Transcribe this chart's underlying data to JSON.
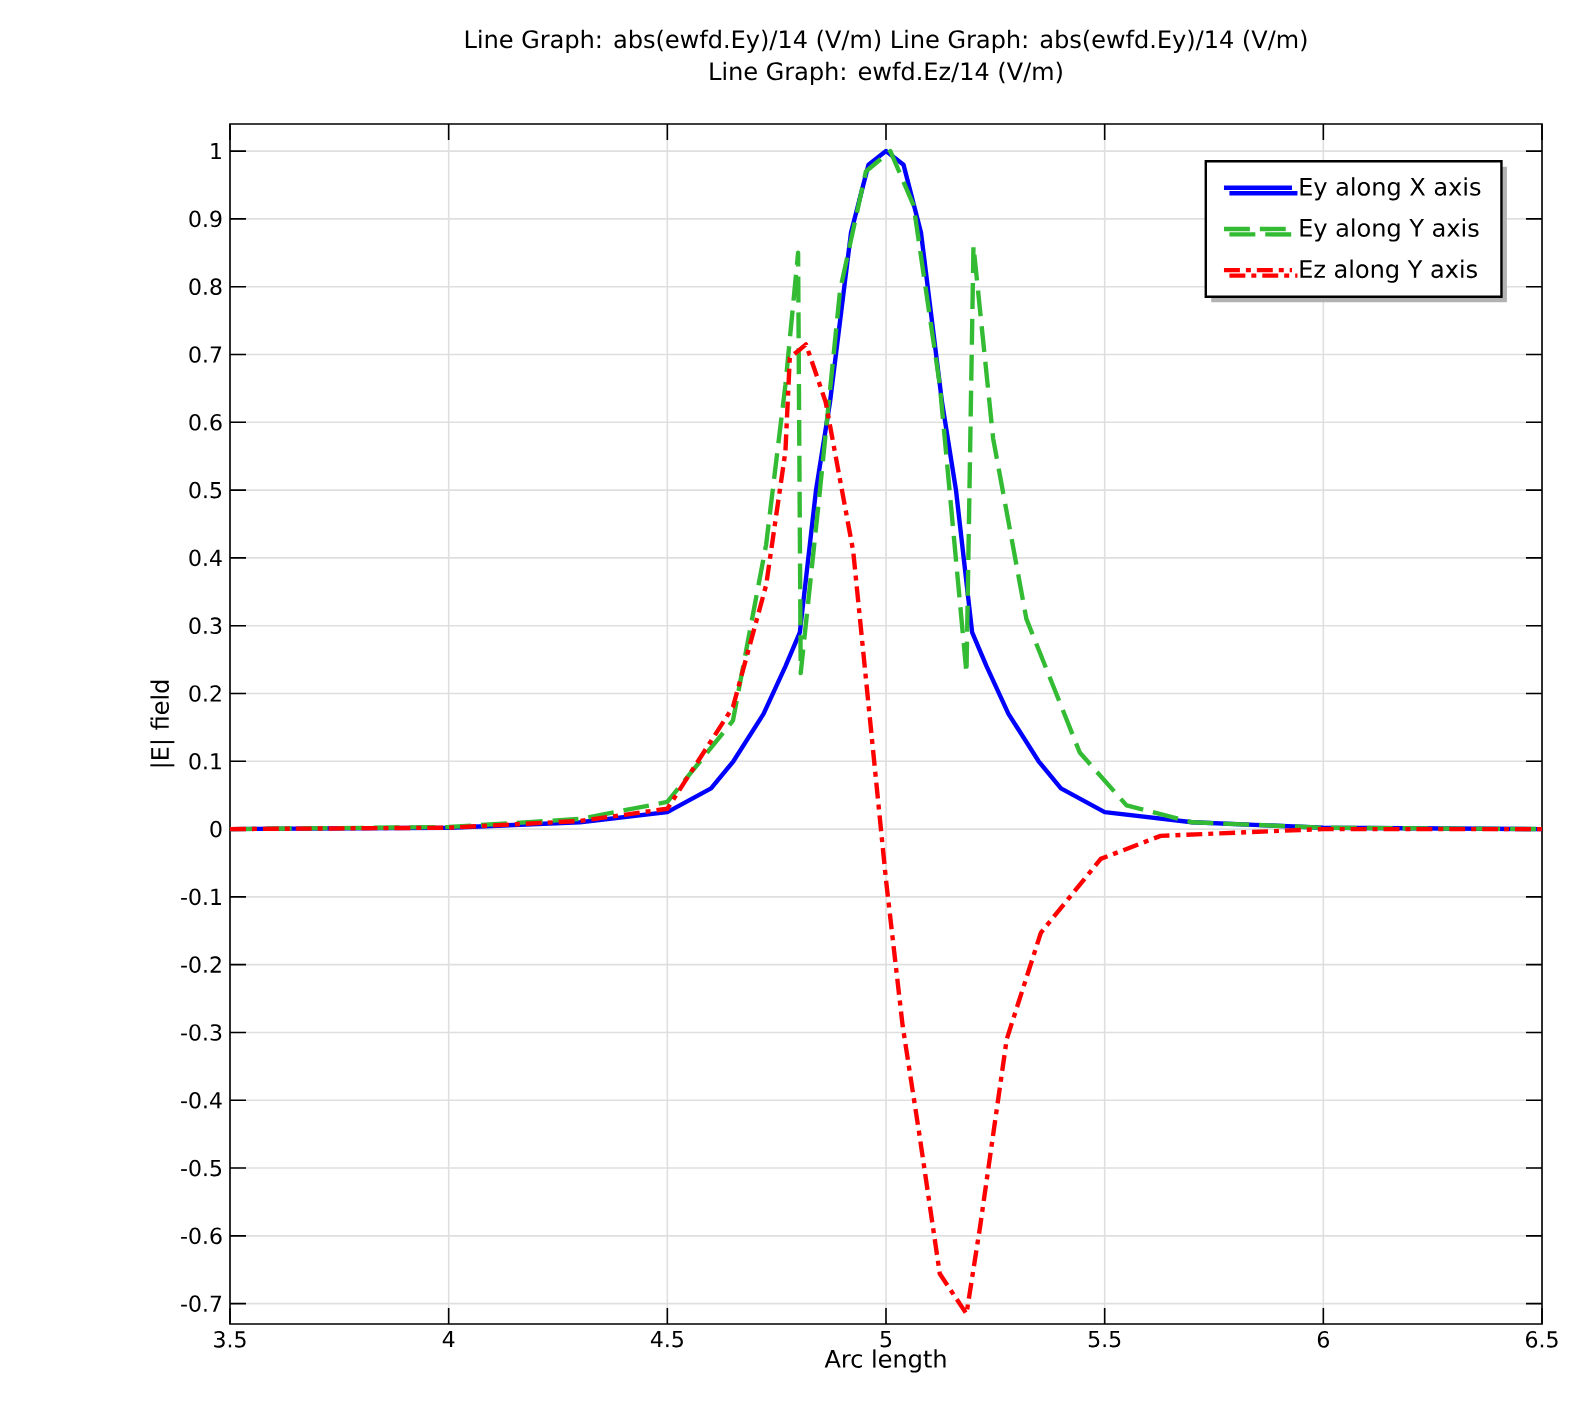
{
  "chart_data": {
    "type": "line",
    "title": "Line Graph: abs(ewfd.Ey)/14 (V/m)   Line Graph: abs(ewfd.Ey)/14 (V/m)",
    "subtitle": "Line Graph: ewfd.Ez/14 (V/m)",
    "xlabel": "Arc length",
    "ylabel": "|E| field",
    "xlim": [
      3.5,
      6.5
    ],
    "ylim": [
      -0.73,
      1.04
    ],
    "xticks": [
      3.5,
      4,
      4.5,
      5,
      5.5,
      6,
      6.5
    ],
    "yticks": [
      -0.7,
      -0.6,
      -0.5,
      -0.4,
      -0.3,
      -0.2,
      -0.1,
      0,
      0.1,
      0.2,
      0.3,
      0.4,
      0.5,
      0.6,
      0.7,
      0.8,
      0.9,
      1
    ],
    "grid": true,
    "legend": "top right",
    "marker": "none",
    "series": [
      {
        "name": "Ey along X axis",
        "color": "#0000ff",
        "line_style": "solid",
        "x": [
          3.5,
          4.0,
          4.3,
          4.5,
          4.6,
          4.651,
          4.72,
          4.77,
          4.803,
          4.84,
          4.872,
          4.92,
          4.96,
          5.0,
          5.04,
          5.08,
          5.128,
          5.16,
          5.197,
          5.23,
          5.28,
          5.349,
          5.4,
          5.5,
          5.7,
          6.0,
          6.5
        ],
        "values": [
          0,
          0.002,
          0.01,
          0.025,
          0.06,
          0.1,
          0.17,
          0.24,
          0.29,
          0.5,
          0.63,
          0.88,
          0.98,
          1.0,
          0.98,
          0.88,
          0.63,
          0.5,
          0.29,
          0.24,
          0.17,
          0.1,
          0.06,
          0.025,
          0.01,
          0.002,
          0
        ]
      },
      {
        "name": "Ey along Y axis",
        "color": "#33bb33",
        "line_style": "dashed",
        "x": [
          3.5,
          4.0,
          4.3,
          4.5,
          4.65,
          4.726,
          4.77,
          4.799,
          4.805,
          4.849,
          4.895,
          4.954,
          5.01,
          5.063,
          5.123,
          5.184,
          5.2,
          5.245,
          5.321,
          5.443,
          5.55,
          5.7,
          6.0,
          6.5
        ],
        "values": [
          0,
          0.003,
          0.015,
          0.04,
          0.16,
          0.42,
          0.655,
          0.85,
          0.23,
          0.5,
          0.795,
          0.97,
          1.0,
          0.92,
          0.655,
          0.23,
          0.86,
          0.576,
          0.31,
          0.113,
          0.035,
          0.01,
          0.002,
          0
        ]
      },
      {
        "name": "Ez along Y axis",
        "color": "#ff0000",
        "line_style": "dashdot",
        "x": [
          3.5,
          4.0,
          4.3,
          4.5,
          4.65,
          4.726,
          4.77,
          4.78,
          4.817,
          4.862,
          4.925,
          5.0,
          5.038,
          5.076,
          5.123,
          5.184,
          5.215,
          5.276,
          5.354,
          5.491,
          5.628,
          6.0,
          6.5
        ],
        "values": [
          0,
          0.002,
          0.012,
          0.03,
          0.18,
          0.36,
          0.557,
          0.695,
          0.715,
          0.63,
          0.41,
          -0.075,
          -0.29,
          -0.449,
          -0.656,
          -0.715,
          -0.587,
          -0.31,
          -0.153,
          -0.044,
          -0.01,
          0,
          0
        ]
      }
    ]
  }
}
